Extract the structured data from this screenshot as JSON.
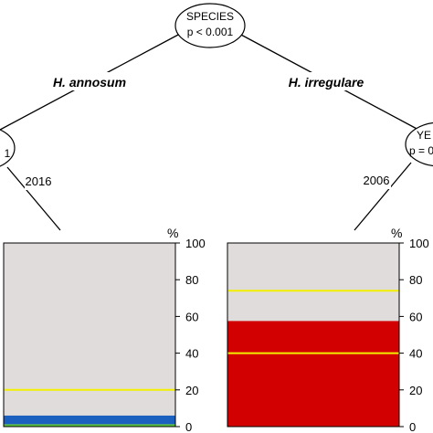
{
  "root_node": {
    "line1": "SPECIES",
    "line2": "p < 0.001"
  },
  "left_node": {
    "line2_fragment": "1"
  },
  "right_node": {
    "line1_fragment": "YE",
    "line2_fragment": "p = 0"
  },
  "branches": {
    "left": {
      "label": "H. annosum",
      "color": "#1a1aa6"
    },
    "right": {
      "label": "H. irregulare",
      "color": "#cc1111"
    }
  },
  "edges": {
    "left_year": "2016",
    "right_year": "2006"
  },
  "panels": [
    {
      "id": "left",
      "percent_label": "%",
      "ticks": [
        "0",
        "20",
        "40",
        "60",
        "80",
        "100"
      ],
      "fill_color": "#e0dcdc",
      "segments": [
        {
          "color": "#58c03a",
          "from": 0,
          "to": 1.3
        },
        {
          "color": "#1b5fbf",
          "from": 1.3,
          "to": 6
        }
      ],
      "reference_lines": [
        {
          "color": "#f2f000",
          "value": 20
        }
      ]
    },
    {
      "id": "right",
      "percent_label": "%",
      "ticks": [
        "0",
        "20",
        "40",
        "60",
        "80",
        "100"
      ],
      "fill_color": "#e0dcdc",
      "segments": [
        {
          "color": "#d20000",
          "from": 0,
          "to": 57.5
        }
      ],
      "reference_lines": [
        {
          "color": "#f2f000",
          "value": 40
        },
        {
          "color": "#f2f000",
          "value": 74
        }
      ]
    }
  ]
}
